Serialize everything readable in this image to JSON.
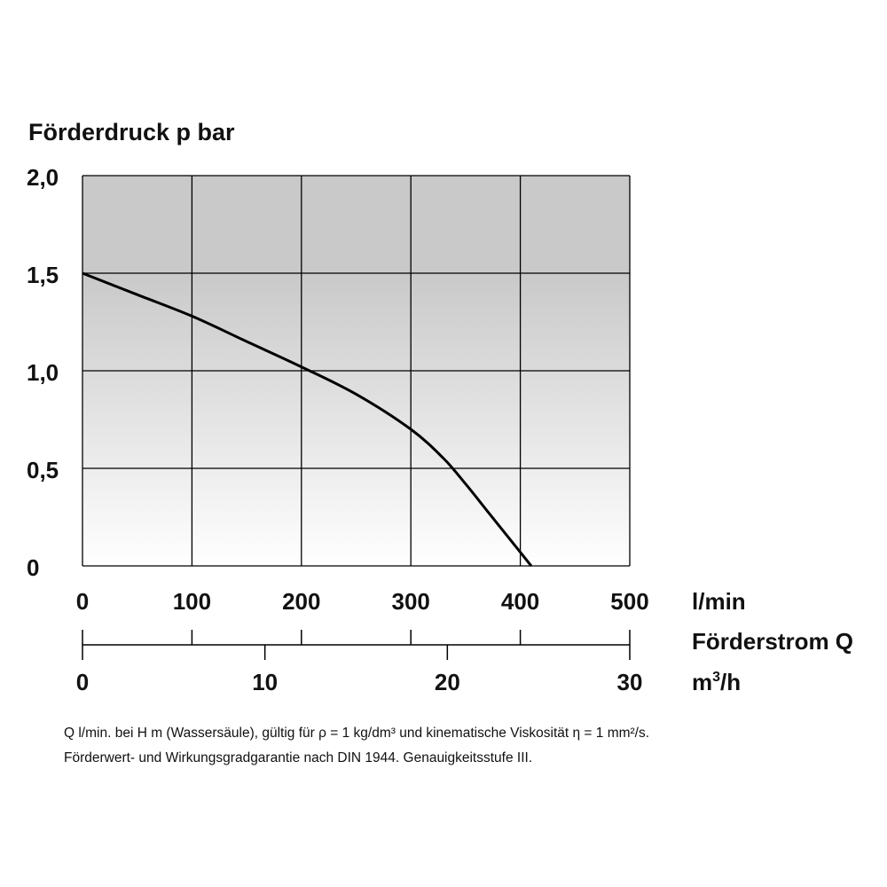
{
  "chart_data": {
    "type": "line",
    "title": "Förderdruck p bar",
    "ylim": [
      0,
      2.0
    ],
    "yticks": [
      "0",
      "0,5",
      "1,0",
      "1,5",
      "2,0"
    ],
    "x_lmin": {
      "range": [
        0,
        500
      ],
      "ticks": [
        "0",
        "100",
        "200",
        "300",
        "400",
        "500"
      ],
      "unit": "l/min"
    },
    "x_m3h": {
      "range": [
        0,
        30
      ],
      "ticks": [
        "0",
        "10",
        "20",
        "30"
      ],
      "unit": "m³/h"
    },
    "xlabel": "Förderstrom Q",
    "grid": true,
    "series": [
      {
        "x": [
          0,
          50,
          100,
          150,
          200,
          250,
          300,
          330,
          350,
          370,
          390,
          410
        ],
        "y": [
          1.5,
          1.39,
          1.28,
          1.15,
          1.02,
          0.88,
          0.7,
          0.55,
          0.42,
          0.28,
          0.14,
          0.0
        ]
      }
    ]
  },
  "notes": {
    "line1": "Q l/min. bei H m (Wassersäule), gültig für ρ = 1 kg/dm³ und kinematische Viskosität η = 1 mm²/s.",
    "line2": "Förderwert- und Wirkungsgradgarantie nach DIN 1944. Genauigkeitsstufe III."
  }
}
